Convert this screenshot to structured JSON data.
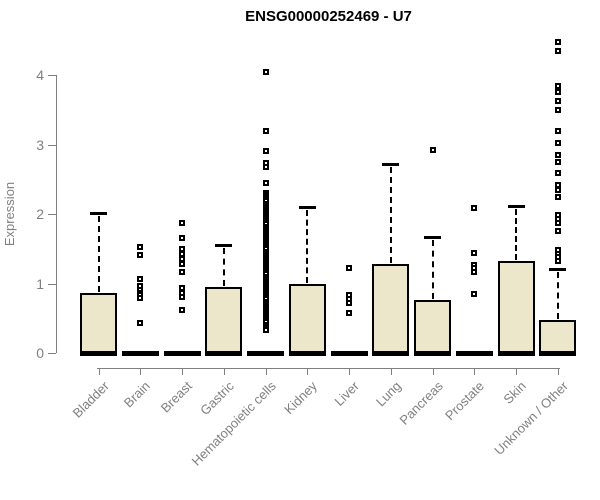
{
  "title": "ENSG00000252469 - U7",
  "colors": {
    "box_fill": "#ece7cb",
    "box_border": "#000000",
    "axis_gray": "#808080",
    "outlier_fill": "#ffffff"
  },
  "chart_data": {
    "type": "boxplot",
    "title": "ENSG00000252469 - U7",
    "xlabel": "",
    "ylabel": "Expression",
    "ylim": [
      0,
      4.6
    ],
    "yticks": [
      0,
      1,
      2,
      3,
      4
    ],
    "grid": false,
    "legend": false,
    "categories": [
      "Bladder",
      "Brain",
      "Breast",
      "Gastric",
      "Hematopoietic cells",
      "Kidney",
      "Liver",
      "Lung",
      "Pancreas",
      "Prostate",
      "Skin",
      "Unknown / Other"
    ],
    "series": [
      {
        "name": "Bladder",
        "q1": 0,
        "median": 0,
        "q3": 0.86,
        "whisker_low": 0,
        "whisker_high": 2.02,
        "outliers": []
      },
      {
        "name": "Brain",
        "q1": 0,
        "median": 0,
        "q3": 0,
        "whisker_low": 0,
        "whisker_high": 0,
        "outliers": [
          1.53,
          1.41,
          1.06,
          0.96,
          0.91,
          0.87,
          0.83,
          0.79,
          0.43
        ]
      },
      {
        "name": "Breast",
        "q1": 0,
        "median": 0,
        "q3": 0,
        "whisker_low": 0,
        "whisker_high": 0,
        "outliers": [
          1.87,
          1.65,
          1.49,
          1.42,
          1.35,
          1.28,
          1.17,
          0.94,
          0.87,
          0.8,
          0.62
        ]
      },
      {
        "name": "Gastric",
        "q1": 0,
        "median": 0,
        "q3": 0.95,
        "whisker_low": 0,
        "whisker_high": 1.55,
        "outliers": []
      },
      {
        "name": "Hematopoietic cells",
        "q1": 0,
        "median": 0,
        "q3": 0,
        "whisker_low": 0,
        "whisker_high": 0,
        "outliers": [
          4.04,
          3.19,
          2.91,
          2.73,
          2.67,
          2.44,
          2.3,
          2.27,
          2.24,
          2.21,
          2.18,
          2.15,
          2.12,
          2.09,
          2.06,
          2.03,
          2.0,
          1.97,
          1.94,
          1.91,
          1.88,
          1.85,
          1.82,
          1.79,
          1.76,
          1.73,
          1.7,
          1.67,
          1.64,
          1.61,
          1.58,
          1.55,
          1.52,
          1.49,
          1.46,
          1.43,
          1.4,
          1.37,
          1.34,
          1.31,
          1.28,
          1.25,
          1.22,
          1.19,
          1.16,
          1.13,
          1.1,
          1.07,
          1.04,
          1.01,
          0.98,
          0.95,
          0.92,
          0.89,
          0.86,
          0.83,
          0.8,
          0.77,
          0.74,
          0.71,
          0.68,
          0.65,
          0.62,
          0.59,
          0.56,
          0.53,
          0.5,
          0.47,
          0.44,
          0.41,
          0.38,
          0.35,
          0.33
        ]
      },
      {
        "name": "Kidney",
        "q1": 0,
        "median": 0,
        "q3": 0.99,
        "whisker_low": 0,
        "whisker_high": 2.1,
        "outliers": []
      },
      {
        "name": "Liver",
        "q1": 0,
        "median": 0,
        "q3": 0,
        "whisker_low": 0,
        "whisker_high": 0,
        "outliers": [
          1.23,
          0.83,
          0.78,
          0.72,
          0.57
        ]
      },
      {
        "name": "Lung",
        "q1": 0,
        "median": 0,
        "q3": 1.28,
        "whisker_low": 0,
        "whisker_high": 2.72,
        "outliers": []
      },
      {
        "name": "Pancreas",
        "q1": 0,
        "median": 0,
        "q3": 0.76,
        "whisker_low": 0,
        "whisker_high": 1.67,
        "outliers": [
          2.92
        ]
      },
      {
        "name": "Prostate",
        "q1": 0,
        "median": 0,
        "q3": 0,
        "whisker_low": 0,
        "whisker_high": 0,
        "outliers": [
          2.08,
          1.44,
          1.27,
          1.22,
          1.17,
          0.85
        ]
      },
      {
        "name": "Skin",
        "q1": 0,
        "median": 0,
        "q3": 1.32,
        "whisker_low": 0,
        "whisker_high": 2.12,
        "outliers": []
      },
      {
        "name": "Unknown / Other",
        "q1": 0,
        "median": 0,
        "q3": 0.47,
        "whisker_low": 0,
        "whisker_high": 1.21,
        "outliers": [
          4.48,
          4.34,
          3.84,
          3.75,
          3.62,
          3.5,
          3.2,
          3.02,
          2.85,
          2.75,
          2.59,
          2.42,
          2.35,
          2.25,
          1.99,
          1.93,
          1.87,
          1.75,
          1.48,
          1.43,
          1.38,
          1.33
        ]
      }
    ]
  }
}
